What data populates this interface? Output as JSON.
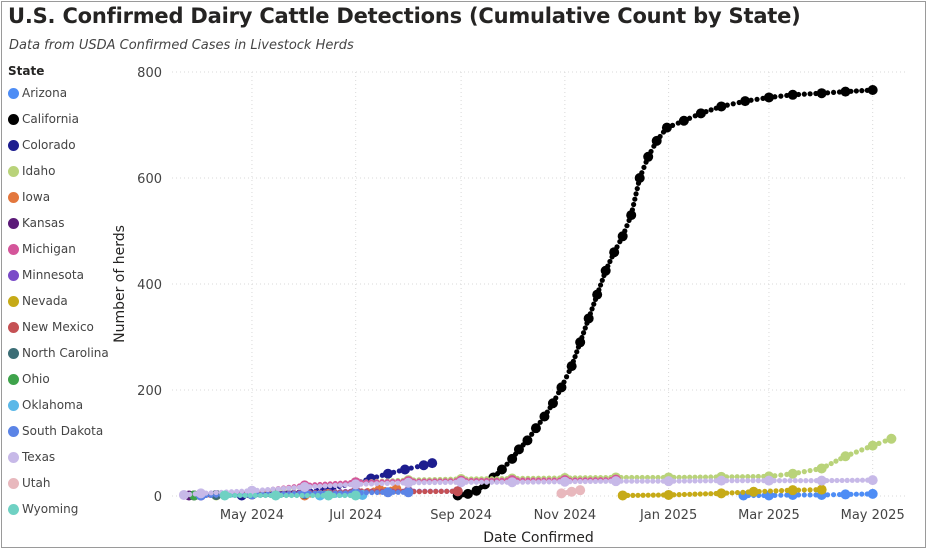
{
  "title": "U.S. Confirmed Dairy Cattle Detections (Cumulative Count by State)",
  "subtitle": "Data from USDA Confirmed Cases in Livestock Herds",
  "chart_data": {
    "type": "scatter",
    "xlabel": "Date Confirmed",
    "ylabel": "Number of herds",
    "legend_title": "State",
    "legend_position": "left",
    "grid": true,
    "xlim": [
      "2024-03-15",
      "2025-05-20"
    ],
    "ylim": [
      0,
      800
    ],
    "yticks": [
      0,
      200,
      400,
      600,
      800
    ],
    "xticks": [
      {
        "date": "2024-05-01",
        "label": "May 2024"
      },
      {
        "date": "2024-07-01",
        "label": "Jul 2024"
      },
      {
        "date": "2024-09-01",
        "label": "Sep 2024"
      },
      {
        "date": "2024-11-01",
        "label": "Nov 2024"
      },
      {
        "date": "2025-01-01",
        "label": "Jan 2025"
      },
      {
        "date": "2025-03-01",
        "label": "Mar 2025"
      },
      {
        "date": "2025-05-01",
        "label": "May 2025"
      }
    ],
    "series": [
      {
        "name": "Arizona",
        "color": "#4e8df5",
        "points": [
          [
            "2025-02-14",
            1
          ],
          [
            "2025-03-01",
            1
          ],
          [
            "2025-03-15",
            2
          ],
          [
            "2025-04-01",
            2
          ],
          [
            "2025-04-15",
            3
          ],
          [
            "2025-05-01",
            4
          ]
        ]
      },
      {
        "name": "California",
        "color": "#000000",
        "points": [
          [
            "2024-08-30",
            1
          ],
          [
            "2024-09-05",
            4
          ],
          [
            "2024-09-10",
            10
          ],
          [
            "2024-09-15",
            22
          ],
          [
            "2024-09-20",
            35
          ],
          [
            "2024-09-25",
            50
          ],
          [
            "2024-10-01",
            70
          ],
          [
            "2024-10-05",
            88
          ],
          [
            "2024-10-10",
            105
          ],
          [
            "2024-10-15",
            128
          ],
          [
            "2024-10-20",
            150
          ],
          [
            "2024-10-25",
            175
          ],
          [
            "2024-10-30",
            205
          ],
          [
            "2024-11-05",
            245
          ],
          [
            "2024-11-10",
            290
          ],
          [
            "2024-11-15",
            335
          ],
          [
            "2024-11-20",
            380
          ],
          [
            "2024-11-25",
            425
          ],
          [
            "2024-11-30",
            460
          ],
          [
            "2024-12-05",
            490
          ],
          [
            "2024-12-10",
            530
          ],
          [
            "2024-12-15",
            600
          ],
          [
            "2024-12-20",
            640
          ],
          [
            "2024-12-25",
            670
          ],
          [
            "2024-12-31",
            695
          ],
          [
            "2025-01-10",
            708
          ],
          [
            "2025-01-20",
            722
          ],
          [
            "2025-02-01",
            735
          ],
          [
            "2025-02-15",
            745
          ],
          [
            "2025-03-01",
            752
          ],
          [
            "2025-03-15",
            757
          ],
          [
            "2025-04-01",
            760
          ],
          [
            "2025-04-15",
            763
          ],
          [
            "2025-05-01",
            766
          ]
        ]
      },
      {
        "name": "Colorado",
        "color": "#1d1d8f",
        "points": [
          [
            "2024-04-25",
            1
          ],
          [
            "2024-05-15",
            4
          ],
          [
            "2024-06-01",
            8
          ],
          [
            "2024-06-15",
            14
          ],
          [
            "2024-07-01",
            24
          ],
          [
            "2024-07-10",
            33
          ],
          [
            "2024-07-20",
            42
          ],
          [
            "2024-07-30",
            50
          ],
          [
            "2024-08-10",
            58
          ],
          [
            "2024-08-15",
            62
          ]
        ]
      },
      {
        "name": "Idaho",
        "color": "#b9d37a",
        "points": [
          [
            "2024-04-10",
            1
          ],
          [
            "2024-05-01",
            6
          ],
          [
            "2024-06-01",
            17
          ],
          [
            "2024-07-01",
            26
          ],
          [
            "2024-08-01",
            30
          ],
          [
            "2024-09-01",
            32
          ],
          [
            "2024-10-01",
            33
          ],
          [
            "2024-11-01",
            34
          ],
          [
            "2024-12-01",
            35
          ],
          [
            "2025-01-01",
            35
          ],
          [
            "2025-02-01",
            36
          ],
          [
            "2025-03-01",
            37
          ],
          [
            "2025-03-15",
            42
          ],
          [
            "2025-04-01",
            52
          ],
          [
            "2025-04-15",
            75
          ],
          [
            "2025-05-01",
            95
          ],
          [
            "2025-05-12",
            108
          ]
        ]
      },
      {
        "name": "Iowa",
        "color": "#e3773d",
        "points": [
          [
            "2024-06-01",
            1
          ],
          [
            "2024-06-15",
            4
          ],
          [
            "2024-07-01",
            9
          ],
          [
            "2024-07-15",
            12
          ],
          [
            "2024-07-25",
            13
          ]
        ]
      },
      {
        "name": "Kansas",
        "color": "#5b1a78",
        "points": [
          [
            "2024-03-25",
            1
          ],
          [
            "2024-04-10",
            2
          ],
          [
            "2024-05-01",
            3
          ],
          [
            "2024-06-01",
            4
          ]
        ]
      },
      {
        "name": "Michigan",
        "color": "#d4559a",
        "points": [
          [
            "2024-04-01",
            1
          ],
          [
            "2024-05-01",
            8
          ],
          [
            "2024-06-01",
            20
          ],
          [
            "2024-07-01",
            26
          ],
          [
            "2024-08-01",
            28
          ],
          [
            "2024-09-01",
            29
          ],
          [
            "2024-10-01",
            30
          ],
          [
            "2024-11-01",
            30
          ],
          [
            "2024-12-01",
            31
          ]
        ]
      },
      {
        "name": "Minnesota",
        "color": "#7a4bc8",
        "points": [
          [
            "2024-04-01",
            1
          ],
          [
            "2024-05-01",
            4
          ],
          [
            "2024-06-01",
            7
          ],
          [
            "2024-07-01",
            9
          ],
          [
            "2024-08-01",
            9
          ],
          [
            "2024-08-30",
            9
          ]
        ]
      },
      {
        "name": "Nevada",
        "color": "#c6aa17",
        "points": [
          [
            "2024-12-05",
            1
          ],
          [
            "2025-01-01",
            2
          ],
          [
            "2025-02-01",
            5
          ],
          [
            "2025-02-20",
            8
          ],
          [
            "2025-03-15",
            11
          ],
          [
            "2025-04-01",
            12
          ]
        ]
      },
      {
        "name": "New Mexico",
        "color": "#c55154",
        "points": [
          [
            "2024-03-28",
            1
          ],
          [
            "2024-05-01",
            3
          ],
          [
            "2024-06-01",
            6
          ],
          [
            "2024-07-01",
            8
          ],
          [
            "2024-08-01",
            8
          ],
          [
            "2024-08-30",
            9
          ]
        ]
      },
      {
        "name": "North Carolina",
        "color": "#3c6e76",
        "points": [
          [
            "2024-03-28",
            1
          ],
          [
            "2024-04-10",
            2
          ],
          [
            "2024-05-01",
            3
          ],
          [
            "2024-06-01",
            4
          ]
        ]
      },
      {
        "name": "Ohio",
        "color": "#3ea34b",
        "points": [
          [
            "2024-03-28",
            1
          ]
        ]
      },
      {
        "name": "Oklahoma",
        "color": "#5bb8e8",
        "points": [
          [
            "2024-06-10",
            1
          ],
          [
            "2024-07-01",
            2
          ],
          [
            "2024-07-05",
            2
          ]
        ]
      },
      {
        "name": "South Dakota",
        "color": "#5b84e6",
        "points": [
          [
            "2024-04-01",
            1
          ],
          [
            "2024-05-01",
            3
          ],
          [
            "2024-06-01",
            5
          ],
          [
            "2024-07-01",
            6
          ],
          [
            "2024-07-20",
            7
          ],
          [
            "2024-08-01",
            7
          ]
        ]
      },
      {
        "name": "Texas",
        "color": "#c7b9e8",
        "points": [
          [
            "2024-03-22",
            2
          ],
          [
            "2024-04-01",
            5
          ],
          [
            "2024-05-01",
            10
          ],
          [
            "2024-06-01",
            17
          ],
          [
            "2024-07-01",
            22
          ],
          [
            "2024-08-01",
            25
          ],
          [
            "2024-09-01",
            26
          ],
          [
            "2024-10-01",
            26
          ],
          [
            "2024-11-01",
            27
          ],
          [
            "2024-12-01",
            28
          ],
          [
            "2025-01-01",
            28
          ],
          [
            "2025-02-01",
            29
          ],
          [
            "2025-03-01",
            29
          ],
          [
            "2025-04-01",
            29
          ],
          [
            "2025-05-01",
            30
          ]
        ]
      },
      {
        "name": "Utah",
        "color": "#e8b8bd",
        "points": [
          [
            "2024-10-30",
            5
          ],
          [
            "2024-11-05",
            8
          ],
          [
            "2024-11-10",
            11
          ]
        ]
      },
      {
        "name": "Wyoming",
        "color": "#6fd1c3",
        "points": [
          [
            "2024-04-15",
            1
          ],
          [
            "2024-05-15",
            1
          ],
          [
            "2024-06-15",
            1
          ],
          [
            "2024-07-01",
            1
          ]
        ]
      }
    ]
  }
}
